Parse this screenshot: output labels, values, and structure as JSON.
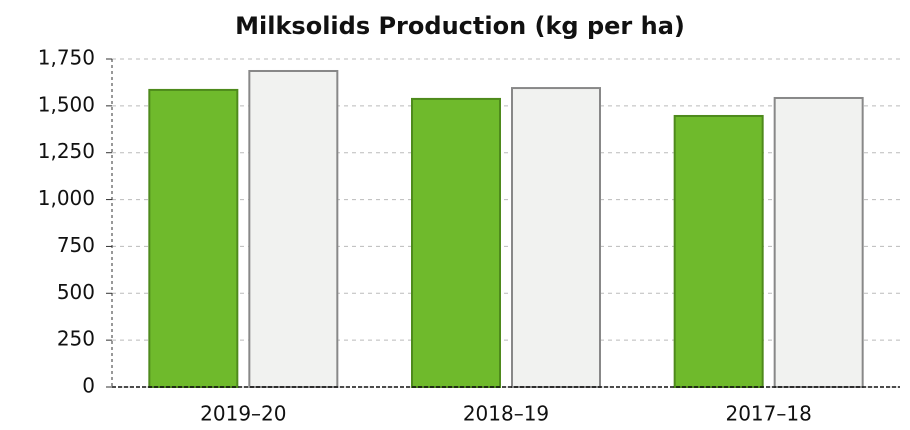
{
  "chart_data": {
    "type": "bar",
    "title": "Milksolids Production (kg per ha)",
    "categories": [
      "2019–20",
      "2018–19",
      "2017–18"
    ],
    "series": [
      {
        "color": "#6fba2c",
        "values": [
          1585,
          1537,
          1446
        ]
      },
      {
        "color": "#f1f2f0",
        "values": [
          1686,
          1595,
          1542
        ]
      }
    ],
    "ylim": [
      0,
      1750
    ],
    "yticks": [
      0,
      250,
      500,
      750,
      {
        "value": 1000,
        "label": "1,000"
      },
      {
        "value": 1250,
        "label": "1,250"
      },
      {
        "value": 1500,
        "label": "1,500"
      },
      {
        "value": 1750,
        "label": "1,750"
      }
    ],
    "grid": true
  }
}
